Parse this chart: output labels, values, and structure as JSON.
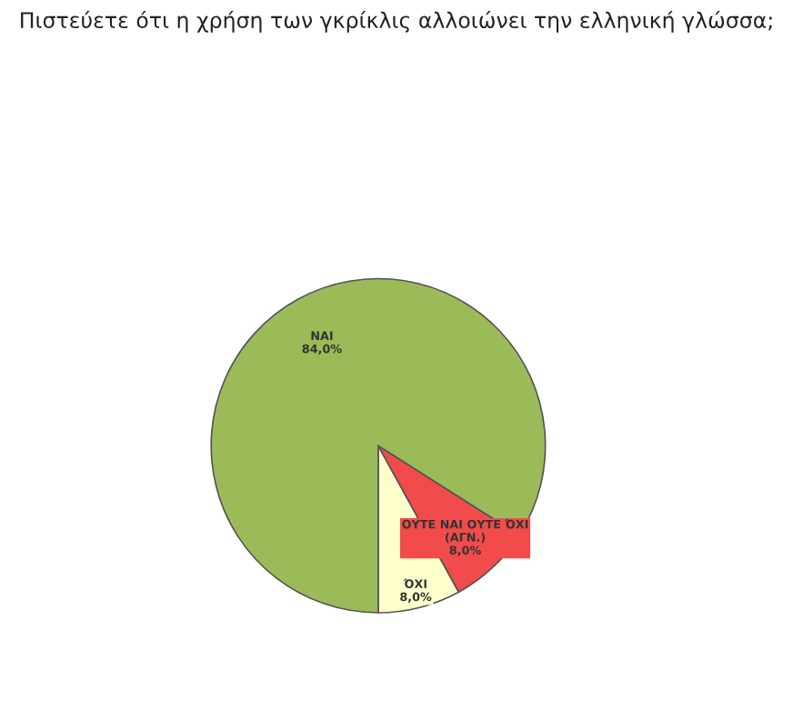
{
  "chart_data": {
    "type": "pie",
    "title": "Πιστεύετε ότι η χρήση των γκρίκλις αλλοιώνει την ελληνική γλώσσα;",
    "categories": [
      "ΌΧΙ",
      "ΟΥΤΕ ΝΑΙ ΟΥΤΕ ΌΧΙ\n(ΑΓΝ.)",
      "ΝΑΙ"
    ],
    "values": [
      8,
      8,
      84
    ],
    "value_labels": [
      "8,0%",
      "8,0%",
      "84,0%"
    ],
    "colors": [
      "#ffffcc",
      "#f24b4b",
      "#9bbb59"
    ]
  }
}
